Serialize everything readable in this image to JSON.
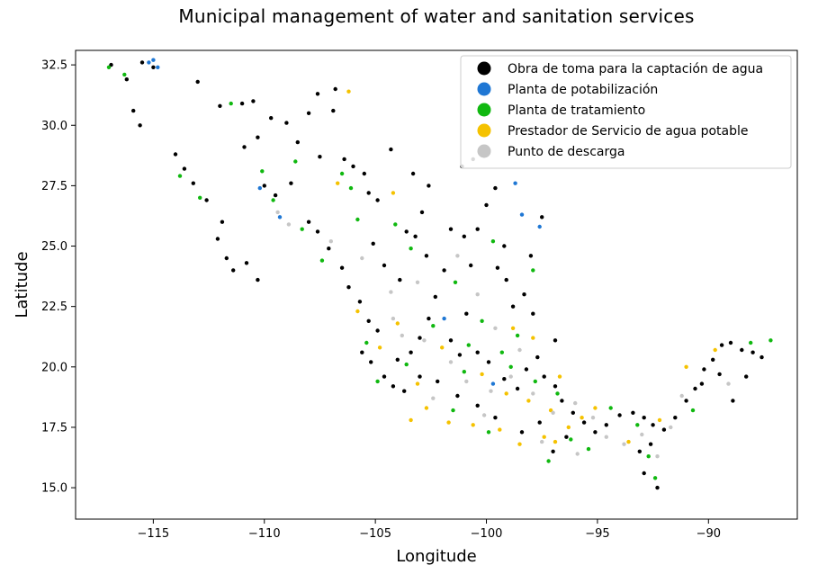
{
  "chart_data": {
    "type": "scatter",
    "title": "Municipal management of water and sanitation services",
    "xlabel": "Longitude",
    "ylabel": "Latitude",
    "xlim": [
      -118.5,
      -86.0
    ],
    "ylim": [
      13.7,
      33.1
    ],
    "x_ticks": [
      -115,
      -110,
      -105,
      -100,
      -95,
      -90
    ],
    "x_tick_labels": [
      "−115",
      "−110",
      "−105",
      "−100",
      "−95",
      "−90"
    ],
    "y_ticks": [
      15.0,
      17.5,
      20.0,
      22.5,
      25.0,
      27.5,
      30.0,
      32.5
    ],
    "y_tick_labels": [
      "15.0",
      "17.5",
      "20.0",
      "22.5",
      "25.0",
      "27.5",
      "30.0",
      "32.5"
    ],
    "grid": false,
    "legend_position": "top-right",
    "series": [
      {
        "name": "Obra de toma para la captación de agua",
        "color": "#000000",
        "points": [
          [
            -116.9,
            32.5
          ],
          [
            -116.2,
            31.9
          ],
          [
            -115.5,
            32.6
          ],
          [
            -115.0,
            32.4
          ],
          [
            -115.9,
            30.6
          ],
          [
            -115.6,
            30.0
          ],
          [
            -113.0,
            31.8
          ],
          [
            -112.0,
            30.8
          ],
          [
            -111.0,
            30.9
          ],
          [
            -110.5,
            31.0
          ],
          [
            -110.9,
            29.1
          ],
          [
            -110.3,
            29.5
          ],
          [
            -109.7,
            30.3
          ],
          [
            -109.0,
            30.1
          ],
          [
            -108.5,
            29.3
          ],
          [
            -108.0,
            30.5
          ],
          [
            -107.5,
            28.7
          ],
          [
            -106.8,
            31.5
          ],
          [
            -106.4,
            28.6
          ],
          [
            -106.0,
            28.3
          ],
          [
            -105.5,
            28.0
          ],
          [
            -105.3,
            27.2
          ],
          [
            -104.9,
            26.9
          ],
          [
            -110.0,
            27.5
          ],
          [
            -109.5,
            27.1
          ],
          [
            -108.8,
            27.6
          ],
          [
            -108.0,
            26.0
          ],
          [
            -107.6,
            25.6
          ],
          [
            -107.1,
            24.9
          ],
          [
            -106.5,
            24.1
          ],
          [
            -106.2,
            23.3
          ],
          [
            -105.7,
            22.7
          ],
          [
            -105.3,
            21.9
          ],
          [
            -104.9,
            21.5
          ],
          [
            -105.6,
            20.6
          ],
          [
            -105.2,
            20.2
          ],
          [
            -104.6,
            19.6
          ],
          [
            -104.2,
            19.2
          ],
          [
            -103.7,
            19.0
          ],
          [
            -103.4,
            20.6
          ],
          [
            -103.0,
            21.2
          ],
          [
            -102.6,
            22.0
          ],
          [
            -102.3,
            22.9
          ],
          [
            -103.9,
            23.6
          ],
          [
            -104.6,
            24.2
          ],
          [
            -105.1,
            25.1
          ],
          [
            -103.6,
            25.6
          ],
          [
            -103.2,
            25.4
          ],
          [
            -102.9,
            26.4
          ],
          [
            -101.6,
            25.7
          ],
          [
            -101.0,
            25.4
          ],
          [
            -100.4,
            25.7
          ],
          [
            -100.0,
            26.7
          ],
          [
            -99.6,
            27.4
          ],
          [
            -100.6,
            28.6
          ],
          [
            -101.1,
            28.3
          ],
          [
            -99.5,
            24.1
          ],
          [
            -98.8,
            22.5
          ],
          [
            -99.1,
            23.6
          ],
          [
            -100.9,
            22.2
          ],
          [
            -101.6,
            21.1
          ],
          [
            -101.2,
            20.5
          ],
          [
            -100.4,
            20.6
          ],
          [
            -99.9,
            20.2
          ],
          [
            -99.2,
            19.5
          ],
          [
            -98.6,
            19.1
          ],
          [
            -98.2,
            19.9
          ],
          [
            -97.7,
            20.4
          ],
          [
            -97.4,
            19.6
          ],
          [
            -96.9,
            19.2
          ],
          [
            -96.6,
            18.6
          ],
          [
            -96.1,
            18.1
          ],
          [
            -95.6,
            17.7
          ],
          [
            -95.1,
            17.3
          ],
          [
            -94.6,
            17.6
          ],
          [
            -94.0,
            18.0
          ],
          [
            -93.4,
            18.1
          ],
          [
            -92.9,
            17.9
          ],
          [
            -92.5,
            17.6
          ],
          [
            -92.0,
            17.4
          ],
          [
            -91.5,
            17.9
          ],
          [
            -91.0,
            18.6
          ],
          [
            -90.6,
            19.1
          ],
          [
            -90.2,
            19.9
          ],
          [
            -89.8,
            20.3
          ],
          [
            -89.4,
            20.9
          ],
          [
            -89.0,
            21.0
          ],
          [
            -88.5,
            20.7
          ],
          [
            -88.0,
            20.6
          ],
          [
            -87.6,
            20.4
          ],
          [
            -88.3,
            19.6
          ],
          [
            -88.9,
            18.6
          ],
          [
            -89.5,
            19.7
          ],
          [
            -90.3,
            19.3
          ],
          [
            -92.9,
            15.6
          ],
          [
            -92.3,
            15.0
          ],
          [
            -93.1,
            16.5
          ],
          [
            -92.6,
            16.8
          ],
          [
            -97.0,
            16.5
          ],
          [
            -96.4,
            17.1
          ],
          [
            -97.6,
            17.7
          ],
          [
            -98.4,
            17.3
          ],
          [
            -99.6,
            17.9
          ],
          [
            -100.4,
            18.4
          ],
          [
            -101.3,
            18.8
          ],
          [
            -102.2,
            19.4
          ],
          [
            -103.0,
            19.6
          ],
          [
            -104.0,
            20.3
          ],
          [
            -111.7,
            24.5
          ],
          [
            -111.4,
            24.0
          ],
          [
            -110.8,
            24.3
          ],
          [
            -110.3,
            23.6
          ],
          [
            -112.1,
            25.3
          ],
          [
            -111.9,
            26.0
          ],
          [
            -112.6,
            26.9
          ],
          [
            -113.2,
            27.6
          ],
          [
            -113.6,
            28.2
          ],
          [
            -114.0,
            28.8
          ],
          [
            -106.9,
            30.6
          ],
          [
            -107.6,
            31.3
          ],
          [
            -104.3,
            29.0
          ],
          [
            -103.3,
            28.0
          ],
          [
            -102.6,
            27.5
          ],
          [
            -99.2,
            25.0
          ],
          [
            -98.0,
            24.6
          ],
          [
            -97.5,
            26.2
          ],
          [
            -98.3,
            23.0
          ],
          [
            -97.9,
            22.2
          ],
          [
            -96.9,
            21.1
          ],
          [
            -100.7,
            24.2
          ],
          [
            -101.9,
            24.0
          ],
          [
            -102.7,
            24.6
          ]
        ]
      },
      {
        "name": "Planta de potabilización",
        "color": "#1f77d4",
        "points": [
          [
            -115.2,
            32.6
          ],
          [
            -114.8,
            32.4
          ],
          [
            -115.0,
            32.7
          ],
          [
            -109.3,
            26.2
          ],
          [
            -110.2,
            27.4
          ],
          [
            -98.7,
            27.6
          ],
          [
            -97.6,
            25.8
          ],
          [
            -98.4,
            26.3
          ],
          [
            -99.7,
            19.3
          ],
          [
            -101.9,
            22.0
          ]
        ]
      },
      {
        "name": "Planta de tratamiento",
        "color": "#10b810",
        "points": [
          [
            -117.0,
            32.4
          ],
          [
            -116.3,
            32.1
          ],
          [
            -113.8,
            27.9
          ],
          [
            -112.9,
            27.0
          ],
          [
            -110.1,
            28.1
          ],
          [
            -108.6,
            28.5
          ],
          [
            -106.1,
            27.4
          ],
          [
            -105.8,
            26.1
          ],
          [
            -104.1,
            25.9
          ],
          [
            -103.4,
            24.9
          ],
          [
            -101.4,
            23.5
          ],
          [
            -100.2,
            21.9
          ],
          [
            -99.3,
            20.6
          ],
          [
            -98.9,
            20.0
          ],
          [
            -97.8,
            19.4
          ],
          [
            -96.8,
            18.9
          ],
          [
            -96.2,
            17.0
          ],
          [
            -95.4,
            16.6
          ],
          [
            -97.2,
            16.1
          ],
          [
            -99.9,
            17.3
          ],
          [
            -101.5,
            18.2
          ],
          [
            -103.6,
            20.1
          ],
          [
            -104.9,
            19.4
          ],
          [
            -105.4,
            21.0
          ],
          [
            -107.4,
            24.4
          ],
          [
            -108.3,
            25.7
          ],
          [
            -109.6,
            26.9
          ],
          [
            -111.5,
            30.9
          ],
          [
            -106.5,
            28.0
          ],
          [
            -99.7,
            25.2
          ],
          [
            -97.9,
            24.0
          ],
          [
            -98.6,
            21.3
          ],
          [
            -100.8,
            20.9
          ],
          [
            -102.4,
            21.7
          ],
          [
            -93.2,
            17.6
          ],
          [
            -92.7,
            16.3
          ],
          [
            -90.7,
            18.2
          ],
          [
            -88.1,
            21.0
          ],
          [
            -87.2,
            21.1
          ],
          [
            -92.4,
            15.4
          ],
          [
            -94.4,
            18.3
          ],
          [
            -101.0,
            19.8
          ]
        ]
      },
      {
        "name": "Prestador de Servicio de agua potable",
        "color": "#f5c200",
        "points": [
          [
            -105.8,
            22.3
          ],
          [
            -104.8,
            20.8
          ],
          [
            -103.1,
            19.3
          ],
          [
            -102.7,
            18.3
          ],
          [
            -101.7,
            17.7
          ],
          [
            -100.6,
            17.6
          ],
          [
            -99.4,
            17.4
          ],
          [
            -98.5,
            16.8
          ],
          [
            -97.4,
            17.1
          ],
          [
            -96.9,
            16.9
          ],
          [
            -96.3,
            17.5
          ],
          [
            -95.7,
            17.9
          ],
          [
            -95.1,
            18.3
          ],
          [
            -97.1,
            18.2
          ],
          [
            -98.1,
            18.6
          ],
          [
            -99.1,
            18.9
          ],
          [
            -100.2,
            19.7
          ],
          [
            -102.0,
            20.8
          ],
          [
            -98.8,
            21.6
          ],
          [
            -97.9,
            21.2
          ],
          [
            -96.7,
            19.6
          ],
          [
            -89.7,
            20.7
          ],
          [
            -91.0,
            20.0
          ],
          [
            -92.2,
            17.8
          ],
          [
            -93.6,
            16.9
          ],
          [
            -106.2,
            31.4
          ],
          [
            -106.7,
            27.6
          ],
          [
            -104.2,
            27.2
          ],
          [
            -104.0,
            21.8
          ],
          [
            -103.4,
            17.8
          ]
        ]
      },
      {
        "name": "Punto de descarga",
        "color": "#c6c6c6",
        "points": [
          [
            -109.4,
            26.4
          ],
          [
            -108.9,
            25.9
          ],
          [
            -104.2,
            22.0
          ],
          [
            -103.8,
            21.3
          ],
          [
            -102.8,
            21.1
          ],
          [
            -101.6,
            20.2
          ],
          [
            -100.9,
            19.4
          ],
          [
            -99.8,
            19.0
          ],
          [
            -98.9,
            19.6
          ],
          [
            -97.9,
            18.9
          ],
          [
            -97.0,
            18.1
          ],
          [
            -96.0,
            18.5
          ],
          [
            -95.2,
            17.9
          ],
          [
            -94.6,
            17.1
          ],
          [
            -93.8,
            16.8
          ],
          [
            -93.0,
            17.2
          ],
          [
            -92.3,
            16.3
          ],
          [
            -91.7,
            17.5
          ],
          [
            -91.2,
            18.8
          ],
          [
            -89.1,
            19.3
          ],
          [
            -98.5,
            20.7
          ],
          [
            -99.6,
            21.6
          ],
          [
            -100.4,
            23.0
          ],
          [
            -101.3,
            24.6
          ],
          [
            -103.1,
            23.5
          ],
          [
            -104.3,
            23.1
          ],
          [
            -105.6,
            24.5
          ],
          [
            -107.0,
            25.2
          ],
          [
            -95.9,
            16.4
          ],
          [
            -97.5,
            16.9
          ],
          [
            -100.1,
            18.0
          ],
          [
            -102.4,
            18.7
          ]
        ]
      }
    ]
  }
}
